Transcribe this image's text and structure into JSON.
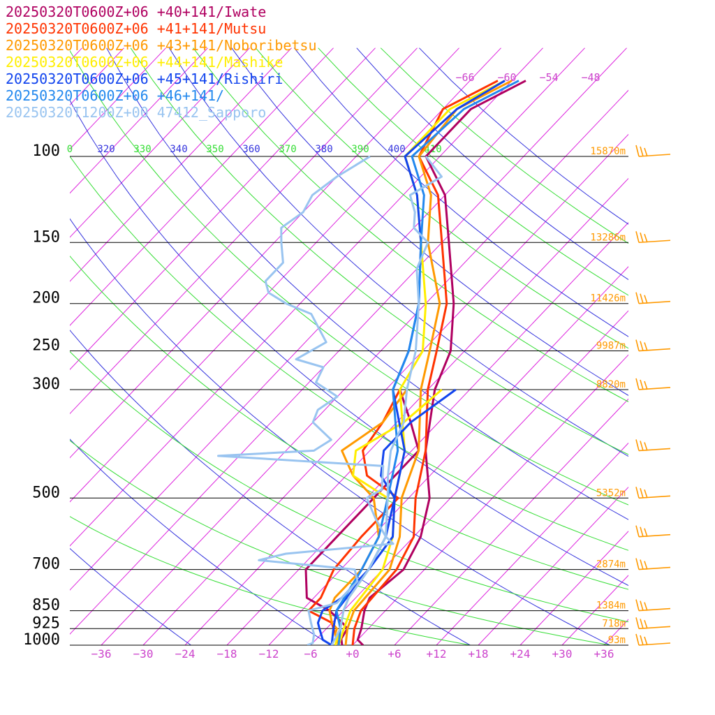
{
  "chart_data": {
    "type": "line",
    "title": "",
    "xlabel": "",
    "ylabel": "",
    "x_axis": {
      "unit": "°C",
      "range": [
        -40,
        40
      ],
      "ticks": [
        -36,
        -30,
        -24,
        -18,
        -12,
        -6,
        0,
        6,
        12,
        18,
        24,
        30,
        36
      ],
      "tick_labels": [
        "−36",
        "−30",
        "−24",
        "−18",
        "−12",
        "−6",
        "+0",
        "+6",
        "+12",
        "+18",
        "+24",
        "+30",
        "+36"
      ]
    },
    "y_axis": {
      "unit": "hPa",
      "scale": "log",
      "range": [
        1000,
        100
      ],
      "ticks": [
        100,
        150,
        200,
        250,
        300,
        500,
        700,
        850,
        925,
        1000
      ],
      "tick_labels": [
        "100",
        "150",
        "200",
        "250",
        "300",
        "500",
        "700",
        "850",
        "925",
        "1000"
      ]
    },
    "legend_placement": "top-left",
    "heights": [
      {
        "p": 100,
        "label": "15870m"
      },
      {
        "p": 150,
        "label": "13286m"
      },
      {
        "p": 200,
        "label": "11426m"
      },
      {
        "p": 250,
        "label": "9987m"
      },
      {
        "p": 300,
        "label": "8820m"
      },
      {
        "p": 500,
        "label": "5352m"
      },
      {
        "p": 700,
        "label": "2874m"
      },
      {
        "p": 850,
        "label": "1384m"
      },
      {
        "p": 925,
        "label": "718m"
      },
      {
        "p": 1000,
        "label": "93m"
      }
    ],
    "theta_labels": [
      "0",
      "320",
      "330",
      "340",
      "350",
      "360",
      "370",
      "380",
      "390",
      "400",
      "410"
    ],
    "mixing_ratio_labels": [
      "−66",
      "−60",
      "−54",
      "−48"
    ],
    "colors": {
      "grid_isobar": "#000000",
      "isotherm": "#dd22dd",
      "dry_adiabat": "#3333dd",
      "moist_adiabat": "#33dd33",
      "height_label": "#ff9900",
      "tick_label": "#cc44cc",
      "barb": "#ff9900"
    },
    "series": [
      {
        "name": "20250320T0600Z+06 +40+141/Iwate",
        "color": "#b00060",
        "temp": [
          [
            1000,
            -1.5
          ],
          [
            970,
            -2.5
          ],
          [
            925,
            -3
          ],
          [
            900,
            -4.5
          ],
          [
            850,
            -8
          ],
          [
            800,
            -13
          ],
          [
            700,
            -17
          ],
          [
            600,
            -17
          ],
          [
            500,
            -17
          ],
          [
            400,
            -17
          ],
          [
            350,
            -22
          ],
          [
            300,
            -28
          ]
        ],
        "dew": [
          [
            1000,
            1.5
          ],
          [
            975,
            0
          ],
          [
            925,
            -1
          ],
          [
            850,
            -3
          ],
          [
            800,
            -4
          ],
          [
            700,
            -3
          ],
          [
            600,
            -5
          ],
          [
            500,
            -9
          ],
          [
            400,
            -16
          ],
          [
            300,
            -23
          ],
          [
            250,
            -26
          ],
          [
            200,
            -32
          ],
          [
            150,
            -41
          ],
          [
            120,
            -48
          ],
          [
            100,
            -56
          ],
          [
            80,
            -56
          ],
          [
            70,
            -52
          ]
        ]
      },
      {
        "name": "20250320T0600Z+06 +41+141/Mutsu",
        "color": "#ff3300",
        "temp": [
          [
            1000,
            -2
          ],
          [
            925,
            -5
          ],
          [
            900,
            -6
          ],
          [
            850,
            -11
          ],
          [
            800,
            -11
          ],
          [
            700,
            -13
          ],
          [
            600,
            -13.5
          ],
          [
            500,
            -13.5
          ],
          [
            450,
            -21
          ],
          [
            400,
            -25
          ],
          [
            350,
            -26
          ],
          [
            300,
            -28
          ]
        ],
        "dew": [
          [
            1000,
            0
          ],
          [
            925,
            -2
          ],
          [
            850,
            -3.5
          ],
          [
            700,
            -4
          ],
          [
            600,
            -6
          ],
          [
            500,
            -11
          ],
          [
            400,
            -16
          ],
          [
            300,
            -24
          ],
          [
            250,
            -28
          ],
          [
            200,
            -33
          ],
          [
            150,
            -42
          ],
          [
            120,
            -49
          ],
          [
            100,
            -57
          ],
          [
            80,
            -60
          ],
          [
            70,
            -56
          ]
        ]
      },
      {
        "name": "20250320T0600Z+06 +43+141/Noboribetsu",
        "color": "#ff9900",
        "temp": [
          [
            1000,
            -2
          ],
          [
            950,
            -4
          ],
          [
            925,
            -4.5
          ],
          [
            900,
            -6
          ],
          [
            850,
            -8
          ],
          [
            800,
            -9
          ],
          [
            700,
            -9
          ],
          [
            600,
            -11
          ],
          [
            500,
            -17
          ],
          [
            450,
            -23
          ],
          [
            400,
            -28
          ],
          [
            350,
            -26
          ],
          [
            300,
            -27
          ]
        ],
        "dew": [
          [
            1000,
            -1
          ],
          [
            925,
            -3
          ],
          [
            850,
            -4.5
          ],
          [
            700,
            -5
          ],
          [
            600,
            -8
          ],
          [
            500,
            -13
          ],
          [
            400,
            -17
          ],
          [
            300,
            -25
          ],
          [
            250,
            -29
          ],
          [
            200,
            -34
          ],
          [
            150,
            -44
          ],
          [
            120,
            -50
          ],
          [
            100,
            -57
          ],
          [
            80,
            -58
          ],
          [
            70,
            -54
          ]
        ]
      },
      {
        "name": "20250320T0600Z+06 +44+141/Mashike",
        "color": "#ffee00",
        "temp": [
          [
            1000,
            -2.5
          ],
          [
            925,
            -4
          ],
          [
            850,
            -6
          ],
          [
            800,
            -7
          ],
          [
            700,
            -8
          ],
          [
            600,
            -10
          ],
          [
            500,
            -15
          ],
          [
            450,
            -23
          ],
          [
            400,
            -26
          ],
          [
            350,
            -23
          ],
          [
            300,
            -22
          ]
        ],
        "dew": [
          [
            1000,
            -2
          ],
          [
            925,
            -3.5
          ],
          [
            850,
            -5
          ],
          [
            700,
            -6
          ],
          [
            600,
            -9
          ],
          [
            500,
            -14
          ],
          [
            400,
            -19
          ],
          [
            300,
            -28
          ],
          [
            250,
            -30
          ],
          [
            200,
            -36
          ],
          [
            150,
            -45
          ],
          [
            120,
            -52
          ],
          [
            100,
            -59
          ],
          [
            80,
            -59
          ],
          [
            70,
            -55
          ]
        ]
      },
      {
        "name": "20250320T0600Z+06 +45+141/Rishiri",
        "color": "#1144ee",
        "temp": [
          [
            1000,
            -3
          ],
          [
            975,
            -5
          ],
          [
            925,
            -7
          ],
          [
            900,
            -8
          ],
          [
            850,
            -9
          ],
          [
            800,
            -8
          ],
          [
            700,
            -8
          ],
          [
            600,
            -9
          ],
          [
            500,
            -14
          ],
          [
            450,
            -19
          ],
          [
            400,
            -22
          ],
          [
            350,
            -22
          ],
          [
            300,
            -20
          ]
        ],
        "dew": [
          [
            1000,
            -3
          ],
          [
            925,
            -5
          ],
          [
            850,
            -7
          ],
          [
            700,
            -8
          ],
          [
            600,
            -10
          ],
          [
            500,
            -14
          ],
          [
            400,
            -19
          ],
          [
            300,
            -29
          ],
          [
            250,
            -32
          ],
          [
            200,
            -37
          ],
          [
            150,
            -45
          ],
          [
            120,
            -52
          ],
          [
            100,
            -59
          ],
          [
            80,
            -58
          ],
          [
            70,
            -55
          ]
        ]
      },
      {
        "name": "20250320T0600Z+06 +46+141/",
        "color": "#2288ee",
        "temp": [],
        "dew": [
          [
            1000,
            -2
          ],
          [
            925,
            -4
          ],
          [
            850,
            -7
          ],
          [
            700,
            -9
          ],
          [
            600,
            -11
          ],
          [
            500,
            -15
          ],
          [
            400,
            -20
          ],
          [
            300,
            -29
          ],
          [
            250,
            -32
          ],
          [
            200,
            -37
          ],
          [
            150,
            -45
          ],
          [
            120,
            -51
          ],
          [
            100,
            -58
          ],
          [
            80,
            -57
          ],
          [
            70,
            -53
          ]
        ]
      },
      {
        "name": "20250320T1200Z+00 47412_Sapporo",
        "color": "#99c4f0",
        "temp": [
          [
            1000,
            -6.5
          ],
          [
            990,
            -6
          ],
          [
            950,
            -7
          ],
          [
            925,
            -8
          ],
          [
            900,
            -9
          ],
          [
            850,
            -11
          ],
          [
            820,
            -8
          ],
          [
            740,
            -8
          ],
          [
            700,
            -10
          ],
          [
            670,
            -25
          ],
          [
            650,
            -22
          ],
          [
            620,
            -8
          ],
          [
            600,
            -10
          ],
          [
            550,
            -14
          ],
          [
            500,
            -18
          ],
          [
            480,
            -17
          ],
          [
            430,
            -20
          ],
          [
            410,
            -45
          ],
          [
            400,
            -32
          ],
          [
            380,
            -31
          ],
          [
            350,
            -36
          ],
          [
            330,
            -37
          ],
          [
            310,
            -36
          ],
          [
            290,
            -41
          ],
          [
            270,
            -42
          ],
          [
            260,
            -47
          ],
          [
            240,
            -45
          ],
          [
            210,
            -51
          ],
          [
            200,
            -56
          ],
          [
            190,
            -60
          ],
          [
            180,
            -62
          ],
          [
            165,
            -62
          ],
          [
            150,
            -65
          ],
          [
            140,
            -67
          ],
          [
            130,
            -66
          ],
          [
            120,
            -67
          ],
          [
            110,
            -66
          ],
          [
            100,
            -64
          ]
        ],
        "dew": [
          [
            1000,
            -3
          ],
          [
            925,
            -4
          ],
          [
            850,
            -6
          ],
          [
            800,
            -7
          ],
          [
            700,
            -8
          ],
          [
            600,
            -10
          ],
          [
            500,
            -15
          ],
          [
            450,
            -18
          ],
          [
            400,
            -21
          ],
          [
            350,
            -23
          ],
          [
            300,
            -27
          ],
          [
            250,
            -31
          ],
          [
            200,
            -37
          ],
          [
            170,
            -42
          ],
          [
            150,
            -44
          ],
          [
            140,
            -48
          ],
          [
            130,
            -50
          ],
          [
            120,
            -53
          ],
          [
            110,
            -51
          ],
          [
            100,
            -56
          ]
        ]
      }
    ]
  }
}
